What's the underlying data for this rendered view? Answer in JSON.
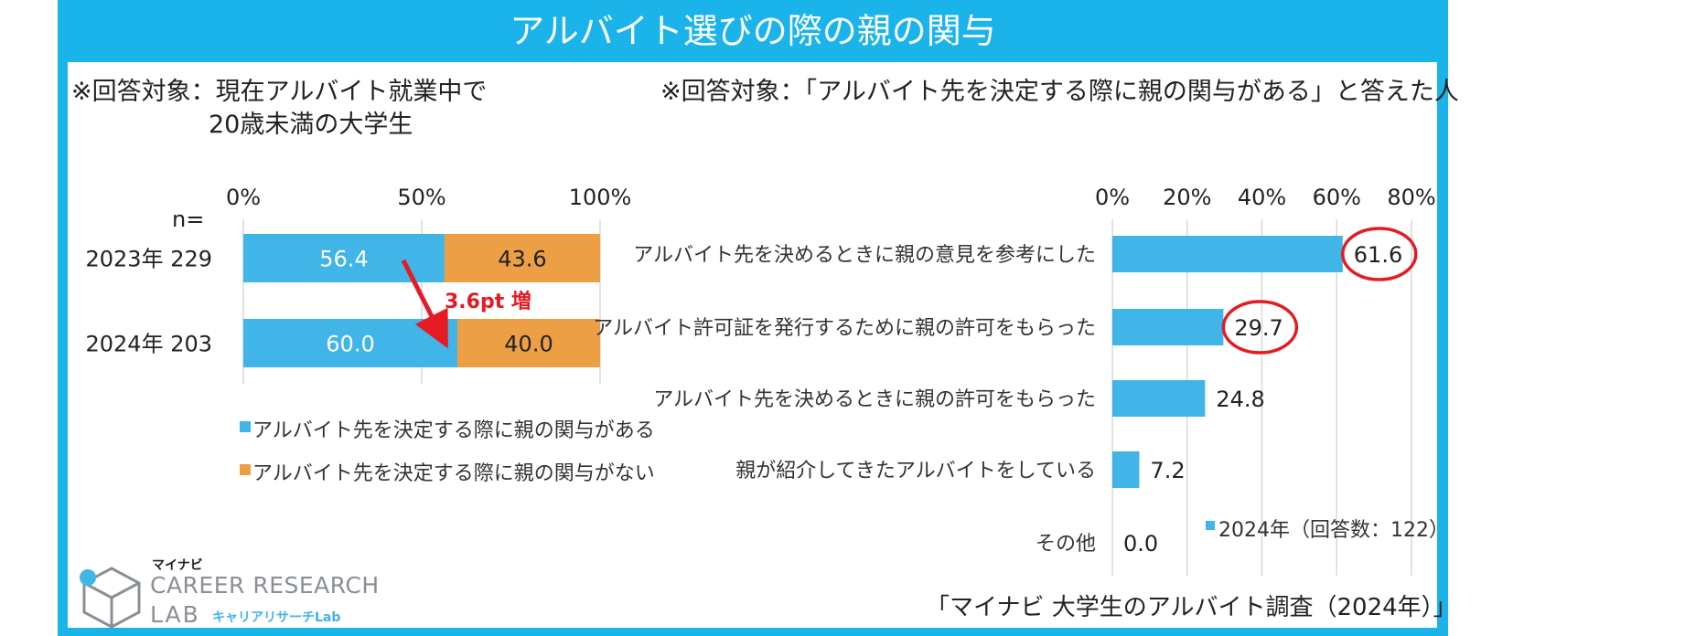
{
  "page": {
    "title": "アルバイト選びの際の親の関与",
    "source": "「マイナビ 大学生のアルバイト調査（2024年）」"
  },
  "colors": {
    "frame": "#1ab4ea",
    "blue": "#41b4e8",
    "orange": "#ec9f44",
    "red": "#e51a22"
  },
  "logo": {
    "brand": "マイナビ",
    "line1": "CAREER RESEARCH",
    "line2": "LAB",
    "sub": "キャリアリサーチLab"
  },
  "chart_data": [
    {
      "type": "bar",
      "orientation": "horizontal-stacked",
      "note_line1": "※回答対象：現在アルバイト就業中で",
      "note_line2": "20歳未満の大学生",
      "n_label": "n=",
      "categories": [
        "2023年 229",
        "2024年 203"
      ],
      "series": [
        {
          "name": "アルバイト先を決定する際に親の関与がある",
          "values": [
            56.4,
            60.0
          ],
          "labels": [
            "56.4",
            "60.0"
          ]
        },
        {
          "name": "アルバイト先を決定する際に親の関与がない",
          "values": [
            43.6,
            40.0
          ],
          "labels": [
            "43.6",
            "40.0"
          ]
        }
      ],
      "xlim": [
        0,
        100
      ],
      "ticks": [
        "0%",
        "50%",
        "100%"
      ],
      "annotation": "3.6pt 増",
      "grid": true
    },
    {
      "type": "bar",
      "orientation": "horizontal",
      "note": "※回答対象：「アルバイト先を決定する際に親の関与がある」と答えた人",
      "categories": [
        "アルバイト先を決めるときに親の意見を参考にした",
        "アルバイト許可証を発行するために親の許可をもらった",
        "アルバイト先を決めるときに親の許可をもらった",
        "親が紹介してきたアルバイトをしている",
        "その他"
      ],
      "values": [
        61.6,
        29.7,
        24.8,
        7.2,
        0.0
      ],
      "labels": [
        "61.6",
        "29.7",
        "24.8",
        "7.2",
        "0.0"
      ],
      "highlighted": [
        true,
        true,
        false,
        false,
        false
      ],
      "legend": "2024年（回答数：122）",
      "xlim": [
        0,
        80
      ],
      "ticks": [
        "0%",
        "20%",
        "40%",
        "60%",
        "80%"
      ],
      "grid": true
    }
  ]
}
